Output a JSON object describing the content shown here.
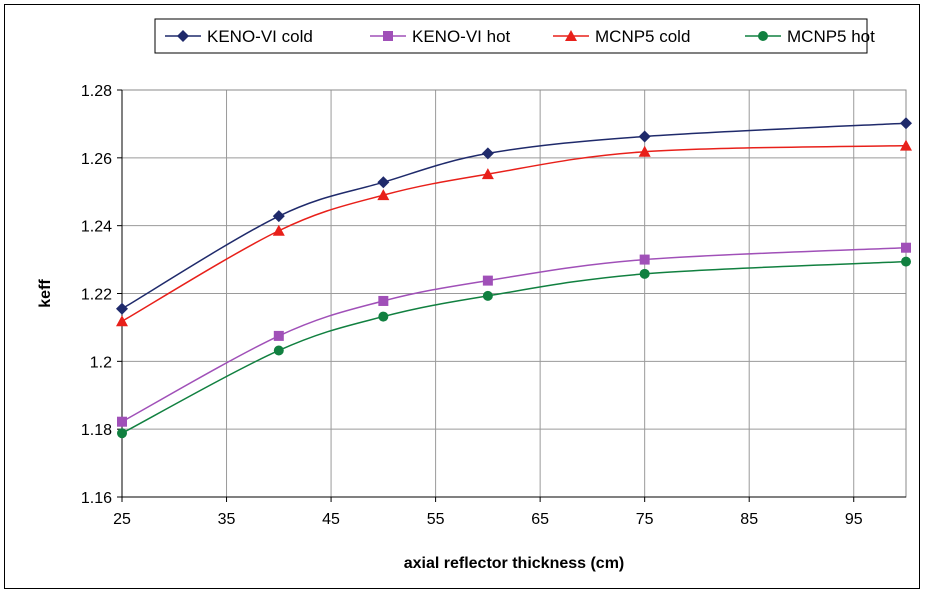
{
  "chart_data": {
    "type": "line",
    "title": "",
    "xlabel": "axial reflector thickness (cm)",
    "ylabel": "keff",
    "xlim": [
      25,
      100
    ],
    "ylim": [
      1.16,
      1.28
    ],
    "x_ticks": [
      25,
      35,
      45,
      55,
      65,
      75,
      85,
      95
    ],
    "y_ticks": [
      1.16,
      1.18,
      1.2,
      1.22,
      1.24,
      1.26,
      1.28
    ],
    "y_tick_labels": [
      "1.16",
      "1.18",
      "1.2",
      "1.22",
      "1.24",
      "1.26",
      "1.28"
    ],
    "grid": true,
    "legend_position": "top",
    "series": [
      {
        "name": "KENO-VI cold",
        "color": "#1f2a6b",
        "marker": "diamond",
        "x": [
          25,
          40,
          50,
          60,
          75,
          100
        ],
        "y": [
          1.2155,
          1.2428,
          1.2528,
          1.2613,
          1.2663,
          1.2702
        ]
      },
      {
        "name": "KENO-VI hot",
        "color": "#a050b8",
        "marker": "square",
        "x": [
          25,
          40,
          50,
          60,
          75,
          100
        ],
        "y": [
          1.1822,
          1.2075,
          1.2178,
          1.2238,
          1.23,
          1.2335
        ]
      },
      {
        "name": "MCNP5 cold",
        "color": "#e8201a",
        "marker": "triangle",
        "x": [
          25,
          40,
          50,
          60,
          75,
          100
        ],
        "y": [
          1.2118,
          1.2385,
          1.249,
          1.2552,
          1.2618,
          1.2636
        ]
      },
      {
        "name": "MCNP5 hot",
        "color": "#118040",
        "marker": "circle",
        "x": [
          25,
          40,
          50,
          60,
          75,
          100
        ],
        "y": [
          1.1788,
          1.2032,
          1.2132,
          1.2193,
          1.2258,
          1.2294
        ]
      }
    ]
  }
}
